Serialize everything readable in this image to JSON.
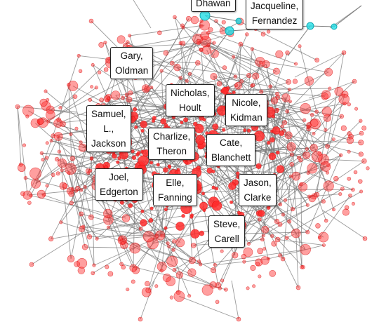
{
  "colors": {
    "edge": "#7a7a7a",
    "node_fill": "#ff2a2a",
    "node_stroke": "#d40000",
    "highlight_fill": "#22dde6",
    "highlight_stroke": "#12aab3",
    "label_border": "#222222"
  },
  "labels": [
    {
      "id": "dhawan",
      "lines": [
        "Dhawan"
      ]
    },
    {
      "id": "jacqueline-fernandez",
      "lines": [
        "Jacqueline,",
        "Fernandez"
      ]
    },
    {
      "id": "gary-oldman",
      "lines": [
        "Gary,",
        "Oldman"
      ]
    },
    {
      "id": "nicholas-hoult",
      "lines": [
        "Nicholas,",
        "Hoult"
      ]
    },
    {
      "id": "nicole-kidman",
      "lines": [
        "Nicole,",
        "Kidman"
      ]
    },
    {
      "id": "samuel-l-jackson",
      "lines": [
        "Samuel,",
        "L.,",
        "Jackson"
      ]
    },
    {
      "id": "charlize-theron",
      "lines": [
        "Charlize,",
        "Theron"
      ]
    },
    {
      "id": "cate-blanchett",
      "lines": [
        "Cate,",
        "Blanchett"
      ]
    },
    {
      "id": "joel-edgerton",
      "lines": [
        "Joel,",
        "Edgerton"
      ]
    },
    {
      "id": "elle-fanning",
      "lines": [
        "Elle,",
        "Fanning"
      ]
    },
    {
      "id": "jason-clarke",
      "lines": [
        "Jason,",
        "Clarke"
      ]
    },
    {
      "id": "steve-carell",
      "lines": [
        "Steve,",
        "Carell"
      ]
    }
  ]
}
